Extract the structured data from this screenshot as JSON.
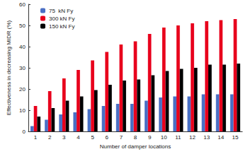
{
  "chart_data": {
    "type": "bar",
    "x_label": "Number of damper locations",
    "y_label": "Effectiveness in decreasing MIDR (%)",
    "categories": [
      "1",
      "2",
      "3",
      "4",
      "5",
      "6",
      "7",
      "8",
      "9",
      "10",
      "11",
      "12",
      "13",
      "14",
      "15"
    ],
    "series": [
      {
        "name": "75  kN Fy",
        "color": "#4a6fc4",
        "values": [
          2.5,
          5.5,
          8,
          9,
          10.5,
          12,
          13,
          13,
          14.5,
          16,
          16.5,
          16.5,
          17.5,
          17.5,
          17.5
        ]
      },
      {
        "name": "300 kN Fy",
        "color": "#e8001c",
        "values": [
          12,
          19,
          25,
          29,
          33.5,
          37.5,
          41,
          42.5,
          46,
          49,
          50,
          51,
          52,
          52.5,
          53
        ]
      },
      {
        "name": "150 kN Fy",
        "color": "#000000",
        "values": [
          7,
          11,
          14.5,
          16.5,
          19.5,
          22,
          24,
          24.5,
          26.5,
          28.5,
          29.5,
          30,
          31.5,
          31.5,
          32
        ]
      }
    ],
    "ylim": [
      0,
      60
    ],
    "yticks": [
      0,
      10,
      20,
      30,
      40,
      50,
      60
    ],
    "grid": false,
    "legend": "upper left"
  }
}
